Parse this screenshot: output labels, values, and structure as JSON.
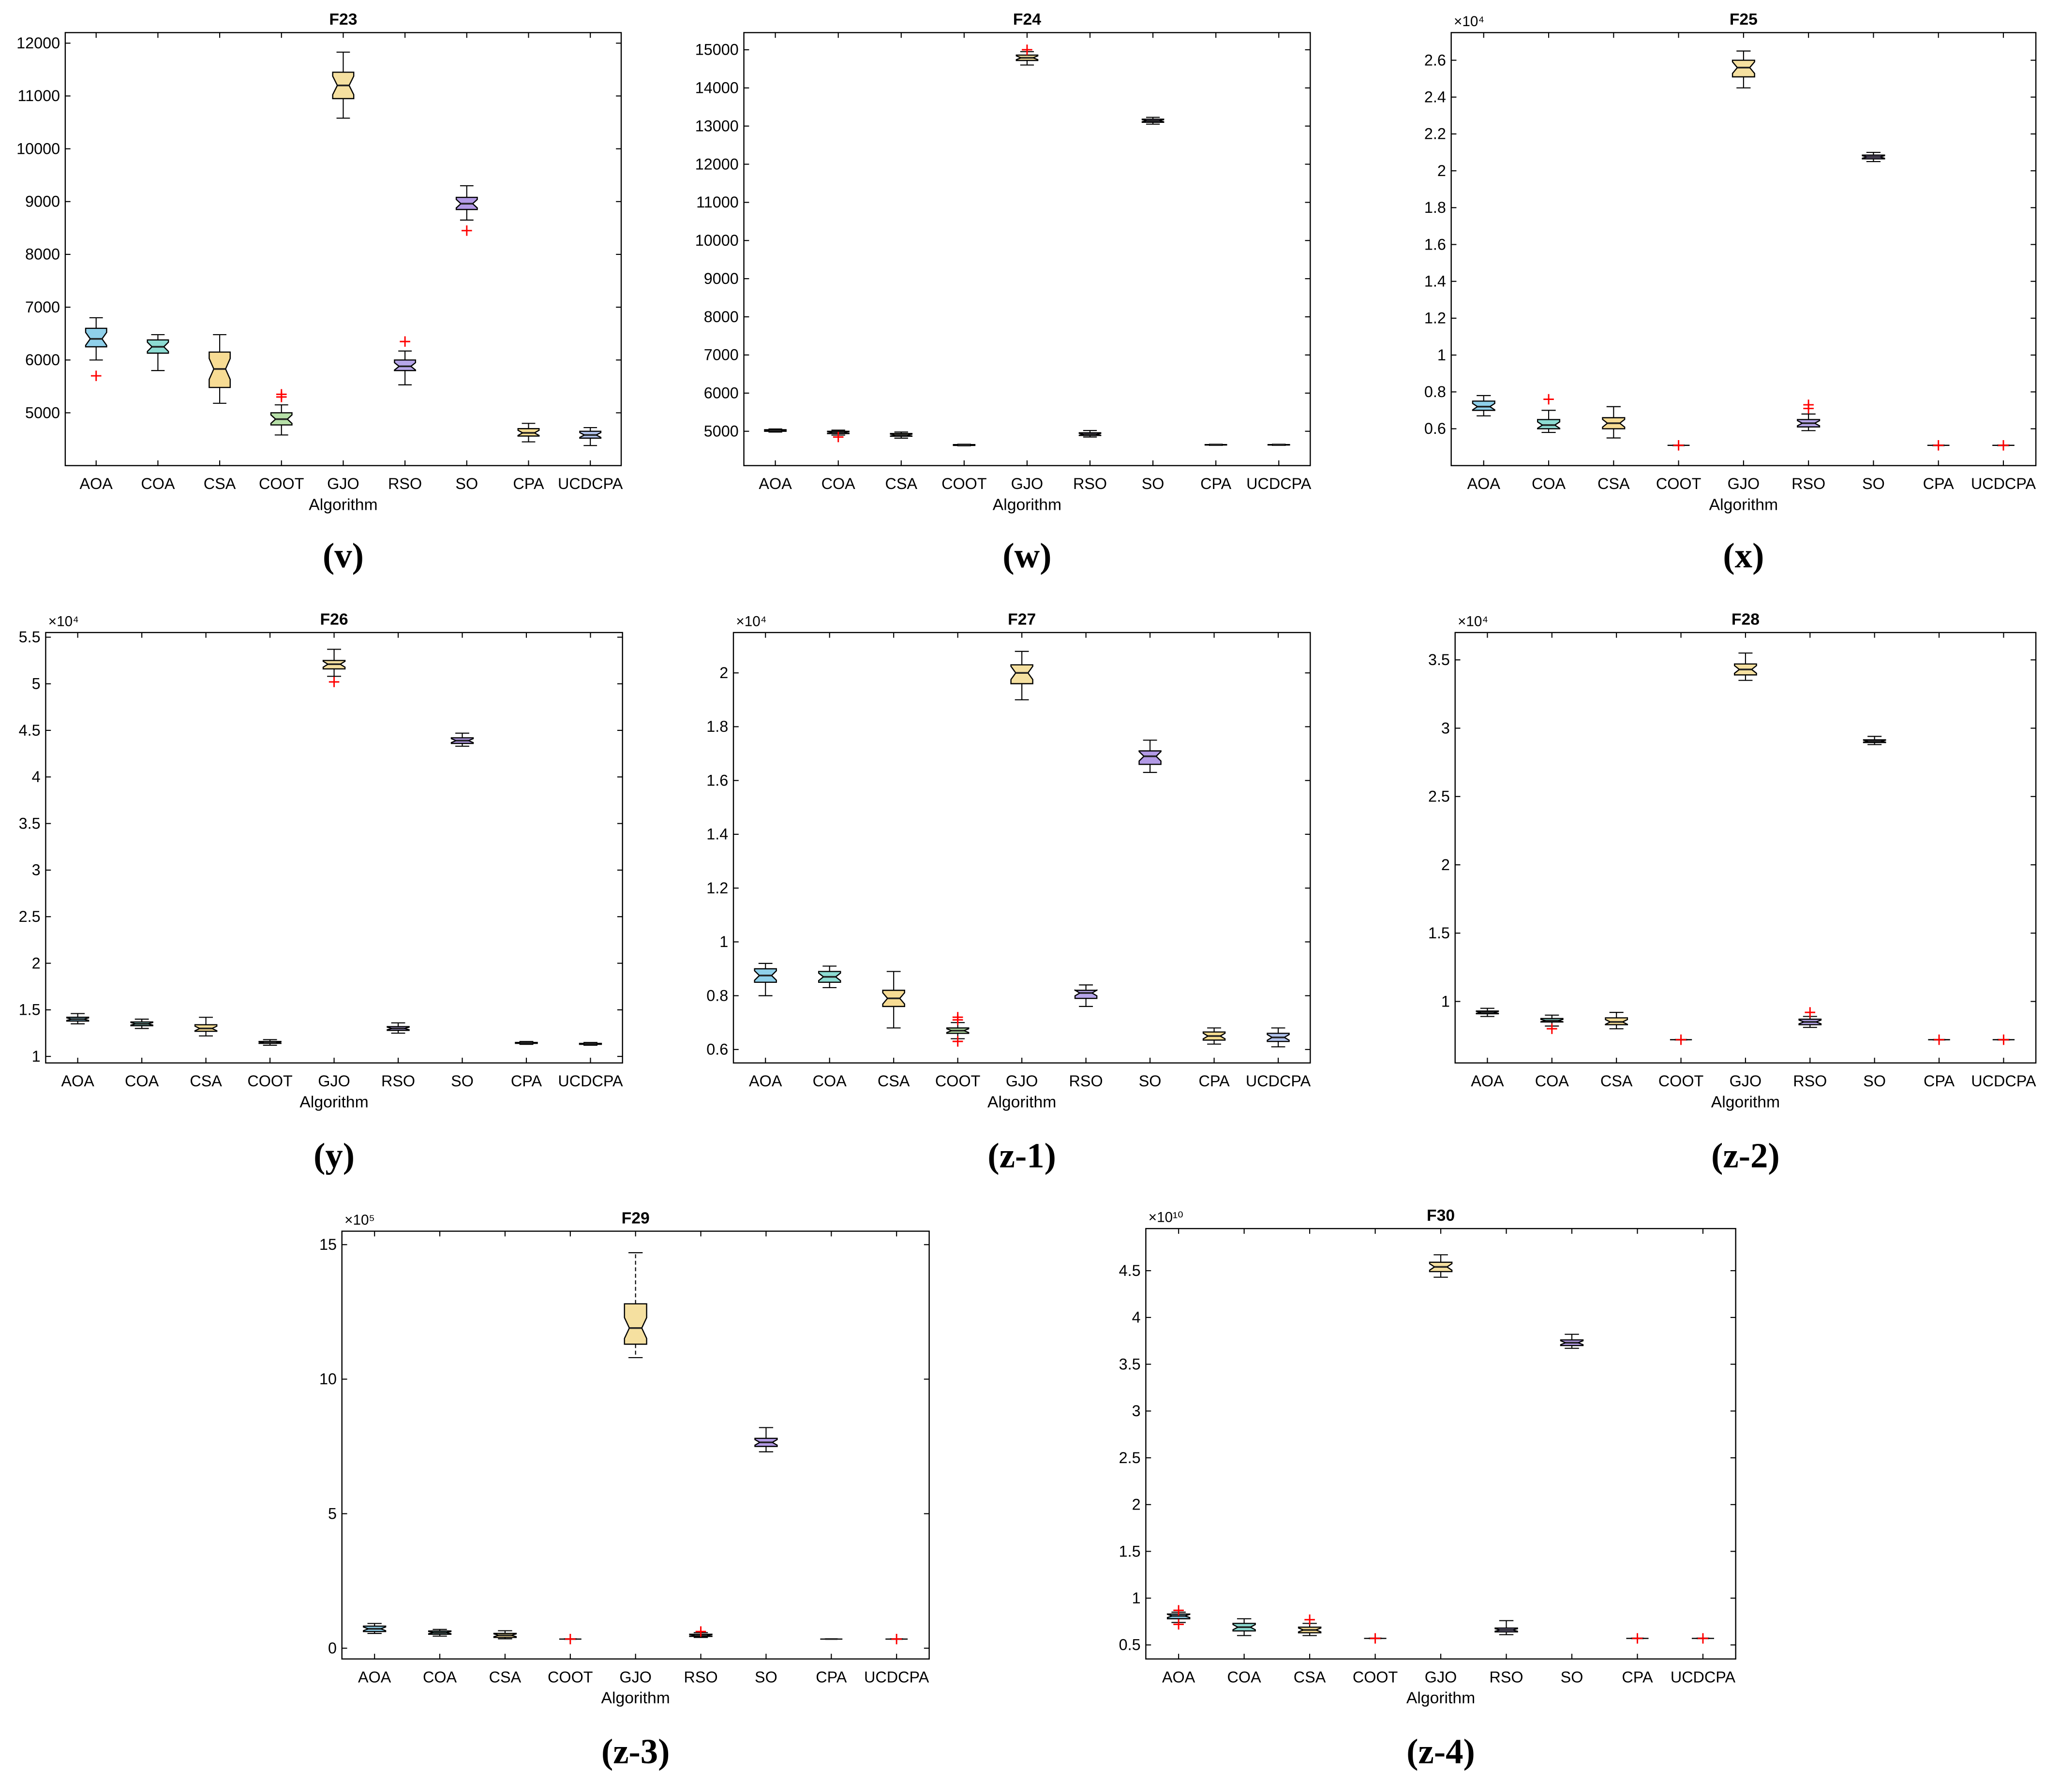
{
  "algorithms": [
    "AOA",
    "COA",
    "CSA",
    "COOT",
    "GJO",
    "RSO",
    "SO",
    "CPA",
    "UCDCPA"
  ],
  "colors": {
    "AOA": "#8fd0ea",
    "COA": "#8ddcd2",
    "CSA": "#f7dc94",
    "COOT": "#b7e0a8",
    "GJO": "#f5e0a0",
    "RSO": "#b7a6ea",
    "SO": "#b39ae6",
    "CPA": "#f7dc8f",
    "UCDCPA": "#b3c4ee",
    "median": "#222222",
    "outlier": "#ff0000",
    "axis": "#000000"
  },
  "chart_data": [
    {
      "type": "box",
      "title": "F23",
      "tag": "(v)",
      "xlabel": "Algorithm",
      "exponent_label": "",
      "ylim": [
        4000,
        12200
      ],
      "ytick_values": [
        5000,
        6000,
        7000,
        8000,
        9000,
        10000,
        11000,
        12000
      ],
      "ytick_labels": [
        "5000",
        "6000",
        "7000",
        "8000",
        "9000",
        "10000",
        "11000",
        "12000"
      ],
      "boxes": [
        {
          "name": "AOA",
          "min": 6000,
          "q1": 6250,
          "median": 6400,
          "q3": 6600,
          "max": 6800,
          "outliers": [
            5700
          ]
        },
        {
          "name": "COA",
          "min": 5800,
          "q1": 6130,
          "median": 6250,
          "q3": 6380,
          "max": 6480,
          "outliers": []
        },
        {
          "name": "CSA",
          "min": 5180,
          "q1": 5480,
          "median": 5830,
          "q3": 6150,
          "max": 6480,
          "outliers": []
        },
        {
          "name": "COOT",
          "min": 4580,
          "q1": 4770,
          "median": 4880,
          "q3": 5000,
          "max": 5150,
          "outliers": [
            5300,
            5350
          ]
        },
        {
          "name": "GJO",
          "min": 10580,
          "q1": 10950,
          "median": 11200,
          "q3": 11450,
          "max": 11830,
          "outliers": []
        },
        {
          "name": "RSO",
          "min": 5530,
          "q1": 5800,
          "median": 5880,
          "q3": 6000,
          "max": 6170,
          "outliers": [
            6350
          ]
        },
        {
          "name": "SO",
          "min": 8650,
          "q1": 8850,
          "median": 8960,
          "q3": 9080,
          "max": 9300,
          "outliers": [
            8450
          ]
        },
        {
          "name": "CPA",
          "min": 4450,
          "q1": 4560,
          "median": 4620,
          "q3": 4700,
          "max": 4800,
          "outliers": []
        },
        {
          "name": "UCDCPA",
          "min": 4380,
          "q1": 4520,
          "median": 4580,
          "q3": 4650,
          "max": 4720,
          "outliers": []
        }
      ]
    },
    {
      "type": "box",
      "title": "F24",
      "tag": "(w)",
      "xlabel": "Algorithm",
      "exponent_label": "",
      "ylim": [
        4100,
        15450
      ],
      "ytick_values": [
        5000,
        6000,
        7000,
        8000,
        9000,
        10000,
        11000,
        12000,
        13000,
        14000,
        15000
      ],
      "ytick_labels": [
        "5000",
        "6000",
        "7000",
        "8000",
        "9000",
        "10000",
        "11000",
        "12000",
        "13000",
        "14000",
        "15000"
      ],
      "boxes": [
        {
          "name": "AOA",
          "min": 4980,
          "q1": 5000,
          "median": 5020,
          "q3": 5040,
          "max": 5060,
          "outliers": []
        },
        {
          "name": "COA",
          "min": 4900,
          "q1": 4940,
          "median": 4970,
          "q3": 5000,
          "max": 5030,
          "outliers": [
            4850
          ]
        },
        {
          "name": "CSA",
          "min": 4820,
          "q1": 4870,
          "median": 4900,
          "q3": 4940,
          "max": 4980,
          "outliers": []
        },
        {
          "name": "COOT",
          "min": 4620,
          "q1": 4630,
          "median": 4640,
          "q3": 4650,
          "max": 4660,
          "outliers": []
        },
        {
          "name": "GJO",
          "min": 14600,
          "q1": 14720,
          "median": 14790,
          "q3": 14860,
          "max": 14950,
          "outliers": [
            15000
          ]
        },
        {
          "name": "RSO",
          "min": 4850,
          "q1": 4890,
          "median": 4920,
          "q3": 4960,
          "max": 5020,
          "outliers": []
        },
        {
          "name": "SO",
          "min": 13050,
          "q1": 13100,
          "median": 13140,
          "q3": 13180,
          "max": 13230,
          "outliers": []
        },
        {
          "name": "CPA",
          "min": 4630,
          "q1": 4640,
          "median": 4645,
          "q3": 4650,
          "max": 4660,
          "outliers": []
        },
        {
          "name": "UCDCPA",
          "min": 4630,
          "q1": 4640,
          "median": 4645,
          "q3": 4650,
          "max": 4660,
          "outliers": []
        }
      ]
    },
    {
      "type": "box",
      "title": "F25",
      "tag": "(x)",
      "xlabel": "Algorithm",
      "exponent_label": "×10⁴",
      "ylim": [
        0.4,
        2.75
      ],
      "ytick_values": [
        0.6,
        0.8,
        1.0,
        1.2,
        1.4,
        1.6,
        1.8,
        2.0,
        2.2,
        2.4,
        2.6
      ],
      "ytick_labels": [
        "0.6",
        "0.8",
        "1",
        "1.2",
        "1.4",
        "1.6",
        "1.8",
        "2",
        "2.2",
        "2.4",
        "2.6"
      ],
      "boxes": [
        {
          "name": "AOA",
          "min": 0.67,
          "q1": 0.7,
          "median": 0.72,
          "q3": 0.75,
          "max": 0.78,
          "outliers": []
        },
        {
          "name": "COA",
          "min": 0.58,
          "q1": 0.6,
          "median": 0.62,
          "q3": 0.65,
          "max": 0.7,
          "outliers": [
            0.76
          ]
        },
        {
          "name": "CSA",
          "min": 0.55,
          "q1": 0.6,
          "median": 0.63,
          "q3": 0.66,
          "max": 0.72,
          "outliers": []
        },
        {
          "name": "COOT",
          "min": 0.51,
          "q1": 0.51,
          "median": 0.51,
          "q3": 0.51,
          "max": 0.51,
          "outliers": [
            0.51
          ]
        },
        {
          "name": "GJO",
          "min": 2.45,
          "q1": 2.51,
          "median": 2.56,
          "q3": 2.6,
          "max": 2.65,
          "outliers": []
        },
        {
          "name": "RSO",
          "min": 0.59,
          "q1": 0.61,
          "median": 0.63,
          "q3": 0.65,
          "max": 0.68,
          "outliers": [
            0.71,
            0.73
          ]
        },
        {
          "name": "SO",
          "min": 2.05,
          "q1": 2.065,
          "median": 2.075,
          "q3": 2.085,
          "max": 2.1,
          "outliers": []
        },
        {
          "name": "CPA",
          "min": 0.51,
          "q1": 0.51,
          "median": 0.51,
          "q3": 0.51,
          "max": 0.51,
          "outliers": [
            0.51
          ]
        },
        {
          "name": "UCDCPA",
          "min": 0.51,
          "q1": 0.51,
          "median": 0.51,
          "q3": 0.51,
          "max": 0.51,
          "outliers": [
            0.51
          ]
        }
      ]
    },
    {
      "type": "box",
      "title": "F26",
      "tag": "(y)",
      "xlabel": "Algorithm",
      "exponent_label": "×10⁴",
      "ylim": [
        0.93,
        5.55
      ],
      "ytick_values": [
        1,
        1.5,
        2,
        2.5,
        3,
        3.5,
        4,
        4.5,
        5,
        5.5
      ],
      "ytick_labels": [
        "1",
        "1.5",
        "2",
        "2.5",
        "3",
        "3.5",
        "4",
        "4.5",
        "5",
        "5.5"
      ],
      "boxes": [
        {
          "name": "AOA",
          "min": 1.35,
          "q1": 1.38,
          "median": 1.4,
          "q3": 1.42,
          "max": 1.46,
          "outliers": []
        },
        {
          "name": "COA",
          "min": 1.3,
          "q1": 1.33,
          "median": 1.35,
          "q3": 1.37,
          "max": 1.4,
          "outliers": []
        },
        {
          "name": "CSA",
          "min": 1.22,
          "q1": 1.27,
          "median": 1.3,
          "q3": 1.34,
          "max": 1.42,
          "outliers": []
        },
        {
          "name": "COOT",
          "min": 1.12,
          "q1": 1.14,
          "median": 1.15,
          "q3": 1.16,
          "max": 1.18,
          "outliers": []
        },
        {
          "name": "GJO",
          "min": 5.08,
          "q1": 5.16,
          "median": 5.21,
          "q3": 5.25,
          "max": 5.37,
          "outliers": [
            5.02
          ]
        },
        {
          "name": "RSO",
          "min": 1.25,
          "q1": 1.28,
          "median": 1.3,
          "q3": 1.32,
          "max": 1.36,
          "outliers": []
        },
        {
          "name": "SO",
          "min": 4.33,
          "q1": 4.36,
          "median": 4.39,
          "q3": 4.42,
          "max": 4.47,
          "outliers": []
        },
        {
          "name": "CPA",
          "min": 1.13,
          "q1": 1.14,
          "median": 1.145,
          "q3": 1.15,
          "max": 1.16,
          "outliers": []
        },
        {
          "name": "UCDCPA",
          "min": 1.12,
          "q1": 1.13,
          "median": 1.135,
          "q3": 1.14,
          "max": 1.15,
          "outliers": []
        }
      ]
    },
    {
      "type": "box",
      "title": "F27",
      "tag": "(z-1)",
      "xlabel": "Algorithm",
      "exponent_label": "×10⁴",
      "ylim": [
        0.55,
        2.15
      ],
      "ytick_values": [
        0.6,
        0.8,
        1.0,
        1.2,
        1.4,
        1.6,
        1.8,
        2.0
      ],
      "ytick_labels": [
        "0.6",
        "0.8",
        "1",
        "1.2",
        "1.4",
        "1.6",
        "1.8",
        "2"
      ],
      "boxes": [
        {
          "name": "AOA",
          "min": 0.8,
          "q1": 0.85,
          "median": 0.875,
          "q3": 0.9,
          "max": 0.92,
          "outliers": []
        },
        {
          "name": "COA",
          "min": 0.83,
          "q1": 0.85,
          "median": 0.87,
          "q3": 0.89,
          "max": 0.91,
          "outliers": []
        },
        {
          "name": "CSA",
          "min": 0.68,
          "q1": 0.76,
          "median": 0.79,
          "q3": 0.82,
          "max": 0.89,
          "outliers": []
        },
        {
          "name": "COOT",
          "min": 0.64,
          "q1": 0.66,
          "median": 0.67,
          "q3": 0.68,
          "max": 0.7,
          "outliers": [
            0.63,
            0.71,
            0.72
          ]
        },
        {
          "name": "GJO",
          "min": 1.9,
          "q1": 1.96,
          "median": 2.0,
          "q3": 2.03,
          "max": 2.08,
          "outliers": []
        },
        {
          "name": "RSO",
          "min": 0.76,
          "q1": 0.79,
          "median": 0.81,
          "q3": 0.82,
          "max": 0.84,
          "outliers": []
        },
        {
          "name": "SO",
          "min": 1.63,
          "q1": 1.66,
          "median": 1.69,
          "q3": 1.71,
          "max": 1.75,
          "outliers": []
        },
        {
          "name": "CPA",
          "min": 0.62,
          "q1": 0.635,
          "median": 0.65,
          "q3": 0.665,
          "max": 0.68,
          "outliers": []
        },
        {
          "name": "UCDCPA",
          "min": 0.61,
          "q1": 0.63,
          "median": 0.645,
          "q3": 0.66,
          "max": 0.68,
          "outliers": []
        }
      ]
    },
    {
      "type": "box",
      "title": "F28",
      "tag": "(z-2)",
      "xlabel": "Algorithm",
      "exponent_label": "×10⁴",
      "ylim": [
        0.55,
        3.7
      ],
      "ytick_values": [
        1,
        1.5,
        2,
        2.5,
        3,
        3.5
      ],
      "ytick_labels": [
        "1",
        "1.5",
        "2",
        "2.5",
        "3",
        "3.5"
      ],
      "boxes": [
        {
          "name": "AOA",
          "min": 0.89,
          "q1": 0.91,
          "median": 0.92,
          "q3": 0.93,
          "max": 0.95,
          "outliers": []
        },
        {
          "name": "COA",
          "min": 0.82,
          "q1": 0.85,
          "median": 0.86,
          "q3": 0.875,
          "max": 0.9,
          "outliers": [
            0.8
          ]
        },
        {
          "name": "CSA",
          "min": 0.8,
          "q1": 0.83,
          "median": 0.85,
          "q3": 0.88,
          "max": 0.92,
          "outliers": []
        },
        {
          "name": "COOT",
          "min": 0.72,
          "q1": 0.72,
          "median": 0.72,
          "q3": 0.72,
          "max": 0.72,
          "outliers": [
            0.72
          ]
        },
        {
          "name": "GJO",
          "min": 3.35,
          "q1": 3.39,
          "median": 3.43,
          "q3": 3.47,
          "max": 3.55,
          "outliers": []
        },
        {
          "name": "RSO",
          "min": 0.81,
          "q1": 0.83,
          "median": 0.85,
          "q3": 0.87,
          "max": 0.89,
          "outliers": [
            0.92
          ]
        },
        {
          "name": "SO",
          "min": 2.88,
          "q1": 2.895,
          "median": 2.905,
          "q3": 2.915,
          "max": 2.94,
          "outliers": []
        },
        {
          "name": "CPA",
          "min": 0.72,
          "q1": 0.72,
          "median": 0.72,
          "q3": 0.72,
          "max": 0.72,
          "outliers": [
            0.72
          ]
        },
        {
          "name": "UCDCPA",
          "min": 0.72,
          "q1": 0.72,
          "median": 0.72,
          "q3": 0.72,
          "max": 0.72,
          "outliers": [
            0.72
          ]
        }
      ]
    },
    {
      "type": "box",
      "title": "F29",
      "tag": "(z-3)",
      "xlabel": "Algorithm",
      "exponent_label": "×10⁵",
      "ylim": [
        -0.4,
        15.5
      ],
      "ytick_values": [
        0,
        5,
        10,
        15
      ],
      "ytick_labels": [
        "0",
        "5",
        "10",
        "15"
      ],
      "boxes": [
        {
          "name": "AOA",
          "min": 0.55,
          "q1": 0.62,
          "median": 0.72,
          "q3": 0.82,
          "max": 0.92,
          "outliers": []
        },
        {
          "name": "COA",
          "min": 0.45,
          "q1": 0.52,
          "median": 0.58,
          "q3": 0.64,
          "max": 0.7,
          "outliers": []
        },
        {
          "name": "CSA",
          "min": 0.35,
          "q1": 0.4,
          "median": 0.48,
          "q3": 0.55,
          "max": 0.65,
          "outliers": []
        },
        {
          "name": "COOT",
          "min": 0.34,
          "q1": 0.34,
          "median": 0.34,
          "q3": 0.34,
          "max": 0.34,
          "outliers": [
            0.34
          ]
        },
        {
          "name": "GJO",
          "min": 10.8,
          "q1": 11.3,
          "median": 11.9,
          "q3": 12.8,
          "max": 14.7,
          "outliers": []
        },
        {
          "name": "RSO",
          "min": 0.4,
          "q1": 0.44,
          "median": 0.48,
          "q3": 0.52,
          "max": 0.58,
          "outliers": [
            0.62
          ]
        },
        {
          "name": "SO",
          "min": 7.3,
          "q1": 7.5,
          "median": 7.65,
          "q3": 7.8,
          "max": 8.2,
          "outliers": []
        },
        {
          "name": "CPA",
          "min": 0.34,
          "q1": 0.34,
          "median": 0.34,
          "q3": 0.34,
          "max": 0.34,
          "outliers": []
        },
        {
          "name": "UCDCPA",
          "min": 0.34,
          "q1": 0.34,
          "median": 0.34,
          "q3": 0.34,
          "max": 0.34,
          "outliers": [
            0.34
          ]
        }
      ]
    },
    {
      "type": "box",
      "title": "F30",
      "tag": "(z-4)",
      "xlabel": "Algorithm",
      "exponent_label": "×10¹⁰",
      "ylim": [
        0.35,
        4.95
      ],
      "ytick_values": [
        0.5,
        1,
        1.5,
        2,
        2.5,
        3,
        3.5,
        4,
        4.5
      ],
      "ytick_labels": [
        "0.5",
        "1",
        "1.5",
        "2",
        "2.5",
        "3",
        "3.5",
        "4",
        "4.5"
      ],
      "boxes": [
        {
          "name": "AOA",
          "min": 0.74,
          "q1": 0.78,
          "median": 0.81,
          "q3": 0.83,
          "max": 0.85,
          "outliers": [
            0.72,
            0.87
          ]
        },
        {
          "name": "COA",
          "min": 0.6,
          "q1": 0.65,
          "median": 0.69,
          "q3": 0.73,
          "max": 0.78,
          "outliers": []
        },
        {
          "name": "CSA",
          "min": 0.6,
          "q1": 0.63,
          "median": 0.66,
          "q3": 0.69,
          "max": 0.73,
          "outliers": [
            0.77
          ]
        },
        {
          "name": "COOT",
          "min": 0.57,
          "q1": 0.57,
          "median": 0.57,
          "q3": 0.57,
          "max": 0.57,
          "outliers": [
            0.57
          ]
        },
        {
          "name": "GJO",
          "min": 4.43,
          "q1": 4.49,
          "median": 4.54,
          "q3": 4.59,
          "max": 4.67,
          "outliers": []
        },
        {
          "name": "RSO",
          "min": 0.61,
          "q1": 0.64,
          "median": 0.66,
          "q3": 0.68,
          "max": 0.76,
          "outliers": []
        },
        {
          "name": "SO",
          "min": 3.67,
          "q1": 3.7,
          "median": 3.73,
          "q3": 3.76,
          "max": 3.82,
          "outliers": []
        },
        {
          "name": "CPA",
          "min": 0.57,
          "q1": 0.57,
          "median": 0.57,
          "q3": 0.57,
          "max": 0.57,
          "outliers": [
            0.57
          ]
        },
        {
          "name": "UCDCPA",
          "min": 0.57,
          "q1": 0.57,
          "median": 0.57,
          "q3": 0.57,
          "max": 0.57,
          "outliers": [
            0.57
          ]
        }
      ]
    }
  ]
}
